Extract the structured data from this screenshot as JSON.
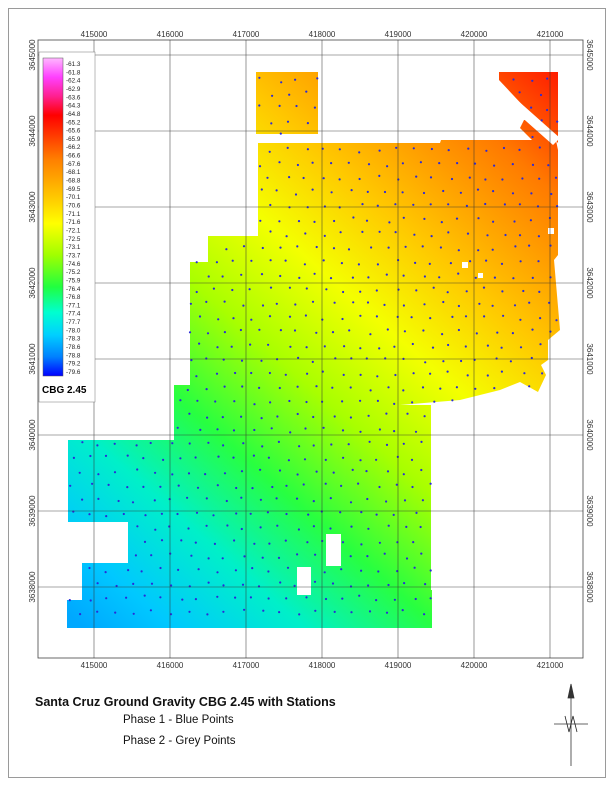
{
  "map": {
    "x_ticks": [
      "415000",
      "416000",
      "417000",
      "418000",
      "419000",
      "420000",
      "421000"
    ],
    "y_ticks": [
      "3645000",
      "3644000",
      "3643000",
      "3642000",
      "3641000",
      "3640000",
      "3639000",
      "3638000"
    ],
    "colorbar_labels": [
      "-61.3",
      "-61.8",
      "-62.4",
      "-62.9",
      "-63.6",
      "-64.3",
      "-64.8",
      "-65.2",
      "-65.6",
      "-65.9",
      "-66.2",
      "-66.6",
      "-67.6",
      "-68.1",
      "-68.8",
      "-69.5",
      "-70.1",
      "-70.6",
      "-71.1",
      "-71.6",
      "-72.1",
      "-72.5",
      "-73.1",
      "-73.7",
      "-74.6",
      "-75.2",
      "-75.9",
      "-76.4",
      "-76.8",
      "-77.1",
      "-77.4",
      "-77.7",
      "-78.0",
      "-78.3",
      "-78.6",
      "-78.8",
      "-79.2",
      "-79.6"
    ],
    "colorbar_title": "CBG 2.45",
    "colors": {
      "high": "#ff0000",
      "low": "#0000ff",
      "station": "#2a2ad8"
    }
  },
  "legend": {
    "title": "Santa Cruz Ground Gravity CBG 2.45 with Stations",
    "phase1": "Phase 1 - Blue Points",
    "phase2": "Phase 2 - Grey Points"
  },
  "north_arrow": {
    "label": "N"
  }
}
